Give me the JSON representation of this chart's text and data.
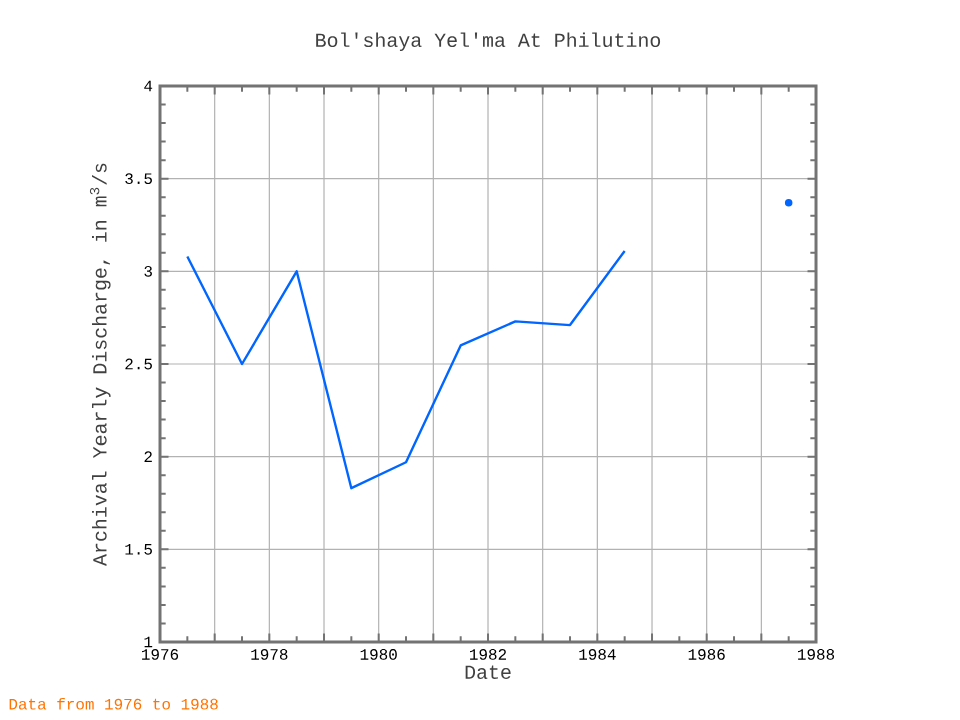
{
  "chart_data": {
    "type": "line",
    "title": "Bol'shaya Yel'ma At Philutino",
    "xlabel": "Date",
    "ylabel": "Archival Yearly Discharge, in m$^{3}$/s",
    "x": [
      1976.5,
      1977.5,
      1978.5,
      1979.5,
      1980.5,
      1981.5,
      1982.5,
      1983.5,
      1984.5,
      1985.5,
      1986.5,
      1987.5
    ],
    "series": [
      {
        "color": "#0066ff",
        "values": [
          3.08,
          2.5,
          3.0,
          1.83,
          1.97,
          2.6,
          2.73,
          2.71,
          3.11,
          null,
          null,
          3.37
        ]
      }
    ],
    "xlim": [
      1976,
      1988
    ],
    "xticks": [
      1976,
      {
        "value": 1977,
        "label": null
      },
      1978,
      {
        "value": 1979,
        "label": null
      },
      1980,
      {
        "value": 1981,
        "label": null
      },
      1982,
      {
        "value": 1983,
        "label": null
      },
      1984,
      {
        "value": 1985,
        "label": null
      },
      1986,
      {
        "value": 1987,
        "label": null
      },
      1988
    ],
    "ylim": [
      1,
      4
    ],
    "yticks": [
      1,
      1.5,
      2,
      2.5,
      3,
      3.5,
      4
    ],
    "grid": true,
    "annotations": [
      "Data from 1976 to 1988"
    ]
  }
}
